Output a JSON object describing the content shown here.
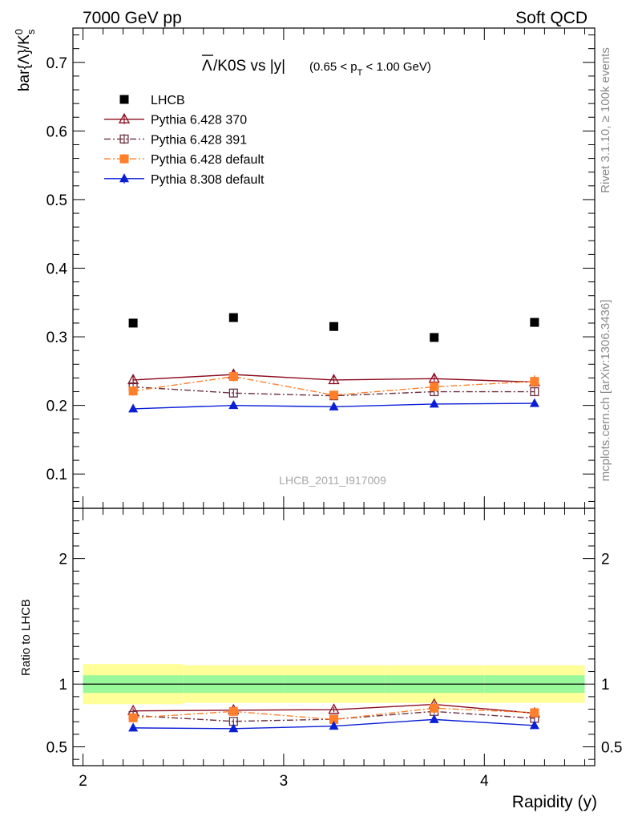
{
  "header": {
    "left": "7000 GeV pp",
    "right": "Soft QCD"
  },
  "side_labels": {
    "rivet": "Rivet 3.1.10, ≥ 100k events",
    "mcplots": "mcplots.cern.ch [arXiv:1306.3436]"
  },
  "analysis_id": "LHCB_2011_I917009",
  "colors": {
    "lhcb": "#000000",
    "p370": "#8b0a1e",
    "p391": "#6b3040",
    "p6def": "#ff7f2a",
    "p8def": "#0a1ed6",
    "band_outer": "#ffff99",
    "band_inner": "#99f899"
  },
  "chart_data": [
    {
      "type": "line",
      "title": "Λ̅/K0S vs |y|",
      "title_main": "/K0S vs |y|",
      "title_bar_symbol": "Λ",
      "title_range": "(0.65 < p",
      "title_range_sub": "T",
      "title_range_end": " < 1.00 GeV)",
      "ylabel": "bar{Λ}/K",
      "ylabel_sup": "0",
      "ylabel_sub": "s",
      "ylim": [
        0.05,
        0.75
      ],
      "xlim": [
        1.95,
        4.55
      ],
      "yticks": [
        0.1,
        0.2,
        0.3,
        0.4,
        0.5,
        0.6,
        0.7
      ],
      "ytick_labels": [
        "0.1",
        "0.2",
        "0.3",
        "0.4",
        "0.5",
        "0.6",
        "0.7"
      ],
      "legend_position": "top-left",
      "series": [
        {
          "key": "lhcb",
          "name": "LHCB",
          "marker": "square-filled",
          "line": "none",
          "x": [
            2.25,
            2.75,
            3.25,
            3.75,
            4.25
          ],
          "y": [
            0.32,
            0.328,
            0.315,
            0.299,
            0.321
          ],
          "err": [
            0,
            0,
            0,
            0,
            0
          ]
        },
        {
          "key": "p370",
          "name": "Pythia 6.428 370",
          "marker": "triangle-open",
          "line": "solid",
          "x": [
            2.25,
            2.75,
            3.25,
            3.75,
            4.25
          ],
          "y": [
            0.237,
            0.245,
            0.237,
            0.239,
            0.234
          ],
          "err": [
            0.006,
            0.006,
            0.006,
            0.006,
            0.006
          ]
        },
        {
          "key": "p391",
          "name": "Pythia 6.428 391",
          "marker": "square-open",
          "line": "dashdot",
          "x": [
            2.25,
            2.75,
            3.25,
            3.75,
            4.25
          ],
          "y": [
            0.227,
            0.218,
            0.214,
            0.22,
            0.22
          ],
          "err": [
            0.006,
            0.006,
            0.006,
            0.006,
            0.006
          ]
        },
        {
          "key": "p6def",
          "name": "Pythia 6.428 default",
          "marker": "square-filled",
          "line": "dashdot",
          "x": [
            2.25,
            2.75,
            3.25,
            3.75,
            4.25
          ],
          "y": [
            0.221,
            0.242,
            0.215,
            0.227,
            0.235
          ],
          "err": [
            0.007,
            0.007,
            0.007,
            0.007,
            0.009
          ]
        },
        {
          "key": "p8def",
          "name": "Pythia 8.308 default",
          "marker": "triangle-filled",
          "line": "solid",
          "x": [
            2.25,
            2.75,
            3.25,
            3.75,
            4.25
          ],
          "y": [
            0.195,
            0.2,
            0.198,
            0.202,
            0.203
          ],
          "err": [
            0.004,
            0.004,
            0.004,
            0.004,
            0.004
          ]
        }
      ]
    },
    {
      "type": "line",
      "ylabel": "Ratio to LHCB",
      "xlabel": "Rapidity (y)",
      "ylim": [
        0.35,
        2.4
      ],
      "xlim": [
        1.95,
        4.55
      ],
      "yticks": [
        0.5,
        1,
        2
      ],
      "ytick_labels": [
        "0.5",
        "1",
        "2"
      ],
      "xticks": [
        2,
        3,
        4
      ],
      "xtick_labels": [
        "2",
        "3",
        "4"
      ],
      "bands": [
        {
          "x0": 2.0,
          "x1": 2.5,
          "inner": [
            0.93,
            1.07
          ],
          "outer": [
            0.84,
            1.16
          ]
        },
        {
          "x0": 2.5,
          "x1": 3.0,
          "inner": [
            0.93,
            1.07
          ],
          "outer": [
            0.85,
            1.15
          ]
        },
        {
          "x0": 3.0,
          "x1": 3.5,
          "inner": [
            0.93,
            1.07
          ],
          "outer": [
            0.85,
            1.15
          ]
        },
        {
          "x0": 3.5,
          "x1": 4.0,
          "inner": [
            0.93,
            1.07
          ],
          "outer": [
            0.85,
            1.15
          ]
        },
        {
          "x0": 4.0,
          "x1": 4.5,
          "inner": [
            0.93,
            1.07
          ],
          "outer": [
            0.85,
            1.15
          ]
        }
      ],
      "series": [
        {
          "key": "p370",
          "name": "Pythia 6.428 370",
          "x": [
            2.25,
            2.75,
            3.25,
            3.75,
            4.25
          ],
          "y": [
            0.786,
            0.792,
            0.796,
            0.838,
            0.768
          ],
          "err": [
            0.02,
            0.02,
            0.02,
            0.02,
            0.02
          ]
        },
        {
          "key": "p391",
          "name": "Pythia 6.428 391",
          "x": [
            2.25,
            2.75,
            3.25,
            3.75,
            4.25
          ],
          "y": [
            0.75,
            0.703,
            0.72,
            0.782,
            0.727
          ],
          "err": [
            0.02,
            0.02,
            0.02,
            0.02,
            0.02
          ]
        },
        {
          "key": "p6def",
          "name": "Pythia 6.428 default",
          "x": [
            2.25,
            2.75,
            3.25,
            3.75,
            4.25
          ],
          "y": [
            0.731,
            0.782,
            0.718,
            0.808,
            0.772
          ],
          "err": [
            0.02,
            0.02,
            0.02,
            0.02,
            0.02
          ]
        },
        {
          "key": "p8def",
          "name": "Pythia 8.308 default",
          "x": [
            2.25,
            2.75,
            3.25,
            3.75,
            4.25
          ],
          "y": [
            0.651,
            0.645,
            0.665,
            0.718,
            0.67
          ],
          "err": [
            0.015,
            0.015,
            0.015,
            0.015,
            0.015
          ]
        }
      ]
    }
  ]
}
